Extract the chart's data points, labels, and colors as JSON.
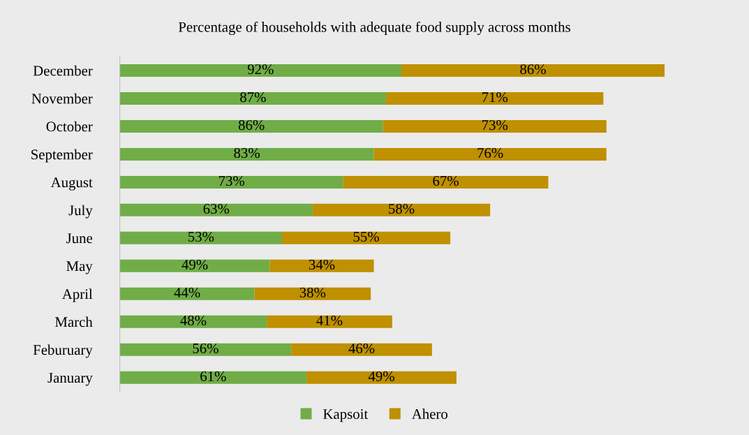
{
  "chart_data": {
    "type": "bar",
    "orientation": "horizontal",
    "stacked": true,
    "title": "Percentage of households with adequate food supply across months",
    "categories": [
      "December",
      "November",
      "October",
      "September",
      "August",
      "July",
      "June",
      "May",
      "April",
      "March",
      "Feburuary",
      "January"
    ],
    "series": [
      {
        "name": "Kapsoit",
        "color": "#70ad47",
        "values": [
          92,
          87,
          86,
          83,
          73,
          63,
          53,
          49,
          44,
          48,
          56,
          61
        ],
        "value_labels": [
          "92%",
          "87%",
          "86%",
          "83%",
          "73%",
          "63%",
          "53%",
          "49%",
          "44%",
          "48%",
          "56%",
          "61%"
        ]
      },
      {
        "name": "Ahero",
        "color": "#bf9000",
        "values": [
          86,
          71,
          73,
          76,
          67,
          58,
          55,
          34,
          38,
          41,
          46,
          49
        ],
        "value_labels": [
          "86%",
          "71%",
          "73%",
          "76%",
          "67%",
          "58%",
          "55%",
          "34%",
          "38%",
          "41%",
          "46%",
          "49%"
        ]
      }
    ],
    "legend": "bottom",
    "grid": false
  }
}
